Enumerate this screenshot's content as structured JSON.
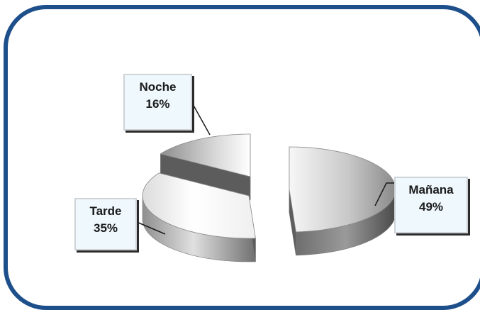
{
  "colors": {
    "frame": "#1d4f8a",
    "label_bg": "#eef8fd",
    "leader": "#1a1a1a"
  },
  "chart_data": {
    "type": "pie",
    "title": "",
    "exploded": true,
    "three_d": true,
    "slices": [
      {
        "label": "Mañana",
        "value": 49,
        "display": "49%"
      },
      {
        "label": "Tarde",
        "value": 35,
        "display": "35%"
      },
      {
        "label": "Noche",
        "value": 16,
        "display": "16%"
      }
    ]
  }
}
